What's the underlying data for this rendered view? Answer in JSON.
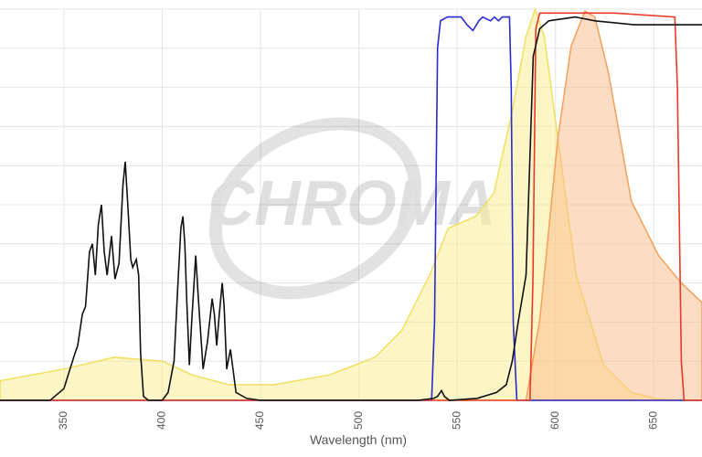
{
  "chart_data": {
    "type": "line",
    "x_label": "Wavelength (nm)",
    "watermark": "CHROMA",
    "xlim": [
      317.5,
      674.5
    ],
    "xticks": [
      350,
      400,
      450,
      500,
      550,
      600,
      650
    ],
    "ylim": [
      0,
      100
    ],
    "yticks": [
      0,
      10,
      20,
      30,
      40,
      50,
      60,
      70,
      80,
      90,
      100
    ],
    "grid": true,
    "series": [
      {
        "color": "#f0e060",
        "fill": "#faeb8c",
        "x": [
          317.5,
          350,
          375.6,
          400.3,
          415.2,
          433.8,
          457,
          485,
          508.2,
          522,
          536,
          545.4,
          559.4,
          568.7,
          578,
          585,
          589.6,
          594.3,
          601.2,
          610.5,
          624.5,
          638.5,
          652.4,
          674.5
        ],
        "values": [
          5,
          8,
          11,
          10,
          6.5,
          4,
          4,
          6.5,
          11,
          18,
          32,
          44,
          47,
          53,
          74,
          93,
          100,
          93,
          67,
          32,
          9,
          2,
          0.3,
          0
        ]
      },
      {
        "color": "#f5a05a",
        "fill": "#fbb98a",
        "x": [
          585,
          592,
          601.2,
          608,
          615,
          620,
          627,
          638.5,
          652.4,
          664,
          674.5
        ],
        "values": [
          0,
          20.5,
          67,
          90.6,
          99.5,
          98,
          83.6,
          51,
          37,
          30,
          25
        ]
      },
      {
        "color": "#2a2ad0",
        "x": [
          317.5,
          537,
          538.5,
          540,
          541.5,
          545,
          552,
          555,
          558,
          561,
          563,
          567,
          569,
          571,
          573,
          576.6,
          577.5,
          578.5,
          580.3,
          674.5
        ],
        "values": [
          0,
          0,
          20,
          90,
          97,
          98,
          98,
          96,
          94.5,
          97,
          98,
          97,
          98,
          97,
          98,
          98,
          80,
          20,
          0,
          0
        ]
      },
      {
        "color": "#e83a2a",
        "x": [
          317.5,
          587,
          588.5,
          590,
          592,
          600,
          630,
          660.7,
          662,
          664,
          665.4,
          674.5
        ],
        "values": [
          0,
          0,
          30,
          95,
          99,
          99,
          99,
          98,
          80,
          10,
          0,
          0
        ]
      },
      {
        "color": "#111111",
        "x": [
          317.5,
          343,
          350,
          355.6,
          357,
          359.4,
          361,
          363,
          364.5,
          366,
          367.5,
          369.1,
          370.5,
          372,
          374.2,
          376,
          378,
          380,
          381.2,
          382.5,
          384,
          385,
          386.8,
          388,
          389,
          390.5,
          393,
          400,
          403,
          406,
          408,
          409.5,
          410.5,
          411.5,
          412.5,
          413.8,
          415,
          417,
          418.5,
          420.8,
          423,
          425.4,
          426.5,
          427.7,
          429,
          430.5,
          431.5,
          432.8,
          434.7,
          436,
          437.5,
          443,
          450,
          530,
          538,
          540,
          542,
          543.5,
          546,
          560,
          570,
          575,
          578,
          581,
          585,
          588.7,
          592,
          596.6,
          610,
          620,
          640,
          674.5
        ],
        "values": [
          0,
          0,
          3,
          12,
          14,
          22,
          24,
          38,
          40,
          32,
          45,
          50,
          38,
          32,
          42,
          31,
          35,
          55,
          61,
          50,
          36,
          34,
          36,
          32,
          12,
          1,
          0,
          0,
          2,
          10,
          30,
          44,
          47,
          40,
          25,
          9,
          20,
          37,
          25,
          8,
          15,
          26,
          22,
          14,
          22,
          30,
          24,
          8,
          13,
          8,
          2,
          0.5,
          0,
          0,
          0.5,
          1,
          2.5,
          1,
          0,
          0.5,
          2,
          4,
          10,
          20,
          32,
          88,
          95,
          97,
          98,
          97,
          96,
          96
        ]
      }
    ]
  }
}
